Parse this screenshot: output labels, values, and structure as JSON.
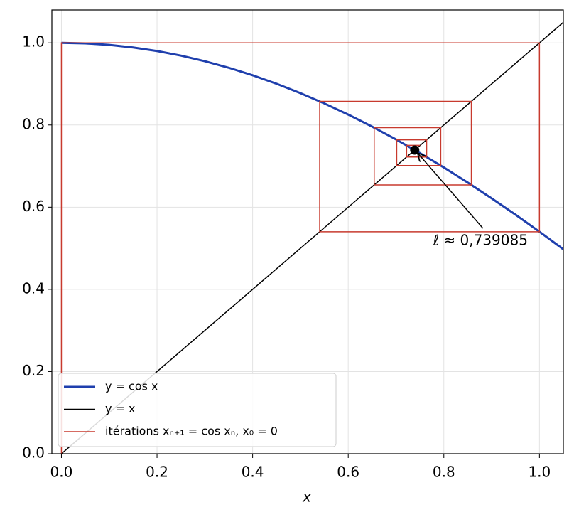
{
  "chart_data": {
    "type": "line",
    "xlabel": "x",
    "xlim": [
      -0.02,
      1.05
    ],
    "ylim": [
      0,
      1.08
    ],
    "xticks": [
      {
        "value": 0,
        "label": "0.0"
      },
      {
        "value": 0.2,
        "label": "0.2"
      },
      {
        "value": 0.4,
        "label": "0.4"
      },
      {
        "value": 0.6,
        "label": "0.6"
      },
      {
        "value": 0.8,
        "label": "0.8"
      },
      {
        "value": 1,
        "label": "1.0"
      }
    ],
    "yticks": [
      {
        "value": 0,
        "label": "0.0"
      },
      {
        "value": 0.2,
        "label": "0.2"
      },
      {
        "value": 0.4,
        "label": "0.4"
      },
      {
        "value": 0.6,
        "label": "0.6"
      },
      {
        "value": 0.8,
        "label": "0.8"
      },
      {
        "value": 1,
        "label": "1.0"
      }
    ],
    "grid": true,
    "legend": "lower left",
    "series": [
      {
        "name": "y = cos x",
        "color": "#1f3fad",
        "x": [
          0,
          0.05,
          0.1,
          0.15,
          0.2,
          0.25,
          0.3,
          0.35,
          0.4,
          0.45,
          0.5,
          0.55,
          0.6,
          0.65,
          0.7,
          0.75,
          0.8,
          0.85,
          0.9,
          0.95,
          1.0,
          1.05
        ],
        "values": [
          1,
          0.99875,
          0.995,
          0.98877,
          0.98007,
          0.96891,
          0.95534,
          0.93937,
          0.92106,
          0.90045,
          0.87758,
          0.85252,
          0.82534,
          0.79608,
          0.76484,
          0.73169,
          0.69671,
          0.65998,
          0.62161,
          0.58168,
          0.5403,
          0.49757
        ]
      },
      {
        "name": "y = x",
        "color": "#000000",
        "x": [
          0,
          1.05
        ],
        "values": [
          0,
          1.05
        ]
      },
      {
        "name": "itérations xₙ₊₁ = cos xₙ, x₀ = 0",
        "color": "#c83a2e",
        "x": [
          0,
          0,
          1,
          1,
          0.5403,
          0.5403,
          0.8576,
          0.8576,
          0.6543,
          0.6543,
          0.7935,
          0.7935,
          0.7014,
          0.7014,
          0.764,
          0.764,
          0.7221,
          0.7221,
          0.7504
        ],
        "values": [
          0,
          1,
          1,
          0.5403,
          0.5403,
          0.8576,
          0.8576,
          0.6543,
          0.6543,
          0.7935,
          0.7935,
          0.7014,
          0.7014,
          0.764,
          0.764,
          0.7221,
          0.7221,
          0.7504,
          0.7504
        ]
      }
    ],
    "point": {
      "x": 0.739085,
      "y": 0.739085,
      "color": "#000000"
    },
    "annotation": "ℓ ≈ 0,739085"
  }
}
